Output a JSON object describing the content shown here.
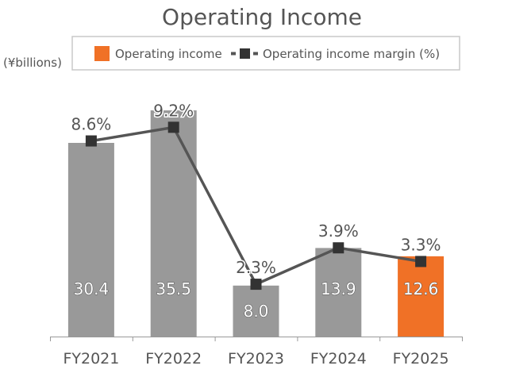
{
  "chart_data": {
    "type": "bar",
    "title": "Operating Income",
    "ylabel": "(¥billions)",
    "xlabel": "",
    "categories": [
      "FY2021",
      "FY2022",
      "FY2023",
      "FY2024",
      "FY2025"
    ],
    "ylim": [
      0,
      40
    ],
    "grid": false,
    "legend_position": "top",
    "series": [
      {
        "name": "Operating income",
        "type": "bar",
        "values": [
          30.4,
          35.5,
          8.0,
          13.9,
          12.6
        ],
        "labels": [
          "30.4",
          "35.5",
          "8.0",
          "13.9",
          "12.6"
        ],
        "color": "#999999",
        "highlight_color": "#f07126",
        "highlight_index": 4
      },
      {
        "name": "Operating income margin (%)",
        "type": "line",
        "values": [
          8.6,
          9.2,
          2.3,
          3.9,
          3.3
        ],
        "labels": [
          "8.6%",
          "9.2%",
          "2.3%",
          "3.9%",
          "3.3%"
        ],
        "color": "#555555",
        "marker": "square",
        "y2lim": [
          0,
          13.4
        ]
      }
    ]
  }
}
